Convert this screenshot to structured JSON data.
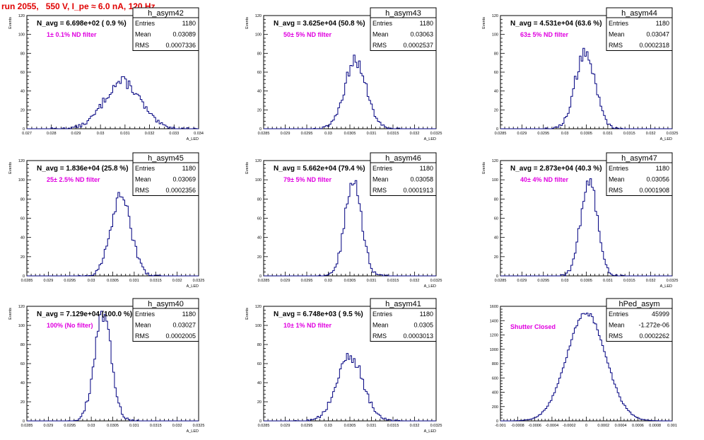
{
  "page_title": "run 2055,   550 V, I_pe ≈ 6.0 nA, 120 Hz",
  "colors": {
    "frame": "#000000",
    "histogram": "#000080",
    "annotation": "#e000e0",
    "title": "#e00000"
  },
  "chart_data": [
    {
      "type": "histogram",
      "name": "h_asym42",
      "navg_text": "N_avg = 6.698e+02 ( 0.9 %)",
      "filter_text": "1± 0.1% ND filter",
      "stats": {
        "entries_label": "Entries",
        "entries": "1180",
        "mean_label": "Mean",
        "mean": "0.03089",
        "rms_label": "RMS",
        "rms": "0.0007336"
      },
      "ylabel": "Events",
      "xlabel": "A_LED",
      "xlim": [
        0.027,
        0.034
      ],
      "ylim": [
        0,
        120
      ],
      "xticks": [
        "0.027",
        "0.028",
        "0.029",
        "0.03",
        "0.031",
        "0.032",
        "0.033",
        "0.034"
      ],
      "yticks": [
        "0",
        "20",
        "40",
        "60",
        "80",
        "100",
        "120"
      ],
      "mean": 0.03089,
      "rms": 0.0007336,
      "peak": 50,
      "entries": 1180
    },
    {
      "type": "histogram",
      "name": "h_asym43",
      "navg_text": "N_avg = 3.625e+04 (50.8 %)",
      "filter_text": "50± 5% ND filter",
      "stats": {
        "entries_label": "Entries",
        "entries": "1180",
        "mean_label": "Mean",
        "mean": "0.03063",
        "rms_label": "RMS",
        "rms": "0.0002537"
      },
      "ylabel": "Events",
      "xlabel": "A_LED",
      "xlim": [
        0.0285,
        0.0325
      ],
      "ylim": [
        0,
        120
      ],
      "xticks": [
        "0.0285",
        "0.029",
        "0.0295",
        "0.03",
        "0.0305",
        "0.031",
        "0.0315",
        "0.032",
        "0.0325"
      ],
      "yticks": [
        "0",
        "20",
        "40",
        "60",
        "80",
        "100",
        "120"
      ],
      "mean": 0.03063,
      "rms": 0.0002537,
      "peak": 72,
      "entries": 1180
    },
    {
      "type": "histogram",
      "name": "h_asym44",
      "navg_text": "N_avg = 4.531e+04 (63.6 %)",
      "filter_text": "63± 5% ND filter",
      "stats": {
        "entries_label": "Entries",
        "entries": "1180",
        "mean_label": "Mean",
        "mean": "0.03047",
        "rms_label": "RMS",
        "rms": "0.0002318"
      },
      "ylabel": "Events",
      "xlabel": "A_LED",
      "xlim": [
        0.0285,
        0.0325
      ],
      "ylim": [
        0,
        120
      ],
      "xticks": [
        "0.0285",
        "0.029",
        "0.0295",
        "0.03",
        "0.0305",
        "0.031",
        "0.0315",
        "0.032",
        "0.0325"
      ],
      "yticks": [
        "0",
        "20",
        "40",
        "60",
        "80",
        "100",
        "120"
      ],
      "mean": 0.03047,
      "rms": 0.0002318,
      "peak": 82,
      "entries": 1180
    },
    {
      "type": "histogram",
      "name": "h_asym45",
      "navg_text": "N_avg = 1.836e+04 (25.8 %)",
      "filter_text": "25± 2.5% ND filter",
      "stats": {
        "entries_label": "Entries",
        "entries": "1180",
        "mean_label": "Mean",
        "mean": "0.03069",
        "rms_label": "RMS",
        "rms": "0.0002356"
      },
      "ylabel": "Events",
      "xlabel": "A_LED",
      "xlim": [
        0.0285,
        0.0325
      ],
      "ylim": [
        0,
        120
      ],
      "xticks": [
        "0.0285",
        "0.029",
        "0.0295",
        "0.03",
        "0.0305",
        "0.031",
        "0.0315",
        "0.032",
        "0.0325"
      ],
      "yticks": [
        "0",
        "20",
        "40",
        "60",
        "80",
        "100",
        "120"
      ],
      "mean": 0.03069,
      "rms": 0.0002356,
      "peak": 82,
      "entries": 1180
    },
    {
      "type": "histogram",
      "name": "h_asym46",
      "navg_text": "N_avg = 5.662e+04 (79.4 %)",
      "filter_text": "79± 5% ND filter",
      "stats": {
        "entries_label": "Entries",
        "entries": "1180",
        "mean_label": "Mean",
        "mean": "0.03058",
        "rms_label": "RMS",
        "rms": "0.0001913"
      },
      "ylabel": "Events",
      "xlabel": "A_LED",
      "xlim": [
        0.0285,
        0.0325
      ],
      "ylim": [
        0,
        120
      ],
      "xticks": [
        "0.0285",
        "0.029",
        "0.0295",
        "0.03",
        "0.0305",
        "0.031",
        "0.0315",
        "0.032",
        "0.0325"
      ],
      "yticks": [
        "0",
        "20",
        "40",
        "60",
        "80",
        "100",
        "120"
      ],
      "mean": 0.03058,
      "rms": 0.0001913,
      "peak": 100,
      "entries": 1180
    },
    {
      "type": "histogram",
      "name": "h_asym47",
      "navg_text": "N_avg = 2.873e+04 (40.3 %)",
      "filter_text": "40± 4% ND filter",
      "stats": {
        "entries_label": "Entries",
        "entries": "1180",
        "mean_label": "Mean",
        "mean": "0.03056",
        "rms_label": "RMS",
        "rms": "0.0001908"
      },
      "ylabel": "Events",
      "xlabel": "A_LED",
      "xlim": [
        0.0285,
        0.0325
      ],
      "ylim": [
        0,
        120
      ],
      "xticks": [
        "0.0285",
        "0.029",
        "0.0295",
        "0.03",
        "0.0305",
        "0.031",
        "0.0315",
        "0.032",
        "0.0325"
      ],
      "yticks": [
        "0",
        "20",
        "40",
        "60",
        "80",
        "100",
        "120"
      ],
      "mean": 0.03056,
      "rms": 0.0001908,
      "peak": 100,
      "entries": 1180
    },
    {
      "type": "histogram",
      "name": "h_asym40",
      "navg_text": "N_avg = 7.129e+04 (100.0 %)",
      "filter_text": "100% (No filter)",
      "stats": {
        "entries_label": "Entries",
        "entries": "1180",
        "mean_label": "Mean",
        "mean": "0.03027",
        "rms_label": "RMS",
        "rms": "0.0002005"
      },
      "ylabel": "Events",
      "xlabel": "A_LED",
      "xlim": [
        0.0285,
        0.0325
      ],
      "ylim": [
        0,
        120
      ],
      "xticks": [
        "0.0285",
        "0.029",
        "0.0295",
        "0.03",
        "0.0305",
        "0.031",
        "0.0315",
        "0.032",
        "0.0325"
      ],
      "yticks": [
        "0",
        "20",
        "40",
        "60",
        "80",
        "100",
        "120"
      ],
      "mean": 0.03027,
      "rms": 0.0002005,
      "peak": 110,
      "entries": 1180
    },
    {
      "type": "histogram",
      "name": "h_asym41",
      "navg_text": "N_avg = 6.748e+03 ( 9.5 %)",
      "filter_text": "10± 1% ND filter",
      "stats": {
        "entries_label": "Entries",
        "entries": "1180",
        "mean_label": "Mean",
        "mean": "0.0305",
        "rms_label": "RMS",
        "rms": "0.0003013"
      },
      "ylabel": "Events",
      "xlabel": "A_LED",
      "xlim": [
        0.0285,
        0.0325
      ],
      "ylim": [
        0,
        120
      ],
      "xticks": [
        "0.0285",
        "0.029",
        "0.0295",
        "0.03",
        "0.0305",
        "0.031",
        "0.0315",
        "0.032",
        "0.0325"
      ],
      "yticks": [
        "0",
        "20",
        "40",
        "60",
        "80",
        "100",
        "120"
      ],
      "mean": 0.0305,
      "rms": 0.0003013,
      "peak": 68,
      "entries": 1180
    },
    {
      "type": "histogram",
      "name": "hPed_asym",
      "navg_text": "",
      "filter_text": "Shutter Closed",
      "stats": {
        "entries_label": "Entries",
        "entries": "45999",
        "mean_label": "Mean",
        "mean": "-1.272e-06",
        "rms_label": "RMS",
        "rms": "0.0002262"
      },
      "ylabel": "",
      "xlabel": "",
      "xlim": [
        -0.001,
        0.001
      ],
      "ylim": [
        0,
        1700
      ],
      "xticks": [
        "-0.001",
        "-0.0008",
        "-0.0006",
        "-0.0004",
        "-0.0002",
        "0",
        "0.0002",
        "0.0004",
        "0.0006",
        "0.0008",
        "0.001"
      ],
      "yticks": [
        "0",
        "200",
        "400",
        "600",
        "800",
        "1000",
        "1200",
        "1400",
        "1600"
      ],
      "mean": -1.3e-06,
      "rms": 0.0002262,
      "peak": 1600,
      "entries": 45999
    }
  ]
}
